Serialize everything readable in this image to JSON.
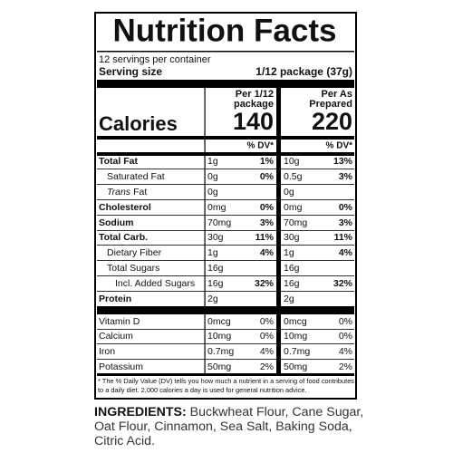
{
  "label": {
    "title": "Nutrition Facts",
    "servings": "12 servings per container",
    "serving_size_label": "Serving size",
    "serving_size_value": "1/12 package (37g)",
    "calories_label": "Calories",
    "columns": [
      {
        "header": [
          "Per 1/12",
          "package"
        ],
        "calories": 140,
        "dv_header": "% DV*"
      },
      {
        "header": [
          "Per As",
          "Prepared"
        ],
        "calories": 220,
        "dv_header": "% DV*"
      }
    ],
    "rows": [
      {
        "name": "Total Fat",
        "amounts": [
          "1g",
          "10g"
        ],
        "dv": [
          "1%",
          "13%"
        ]
      },
      {
        "name": "Saturated Fat",
        "amounts": [
          "0g",
          "0.5g"
        ],
        "dv": [
          "0%",
          "3%"
        ]
      },
      {
        "name_prefix": "Trans",
        "name": "Fat",
        "amounts": [
          "0g",
          "0g"
        ],
        "dv": [
          null,
          null
        ]
      },
      {
        "name": "Cholesterol",
        "amounts": [
          "0mg",
          "0mg"
        ],
        "dv": [
          "0%",
          "0%"
        ]
      },
      {
        "name": "Sodium",
        "amounts": [
          "70mg",
          "70mg"
        ],
        "dv": [
          "3%",
          "3%"
        ]
      },
      {
        "name": "Total Carb.",
        "amounts": [
          "30g",
          "30g"
        ],
        "dv": [
          "11%",
          "11%"
        ]
      },
      {
        "name": "Dietary Fiber",
        "amounts": [
          "1g",
          "1g"
        ],
        "dv": [
          "4%",
          "4%"
        ]
      },
      {
        "name": "Total Sugars",
        "amounts": [
          "16g",
          "16g"
        ],
        "dv": [
          null,
          null
        ]
      },
      {
        "name": "Incl. Added Sugars",
        "amounts": [
          "16g",
          "16g"
        ],
        "dv": [
          "32%",
          "32%"
        ]
      },
      {
        "name": "Protein",
        "amounts": [
          "2g",
          "2g"
        ],
        "dv": [
          null,
          null
        ]
      },
      {
        "name": "Vitamin D",
        "amounts": [
          "0mcg",
          "0mcg"
        ],
        "dv": [
          "0%",
          "0%"
        ]
      },
      {
        "name": "Calcium",
        "amounts": [
          "10mg",
          "10mg"
        ],
        "dv": [
          "0%",
          "0%"
        ]
      },
      {
        "name": "Iron",
        "amounts": [
          "0.7mg",
          "0.7mg"
        ],
        "dv": [
          "4%",
          "4%"
        ]
      },
      {
        "name": "Potassium",
        "amounts": [
          "50mg",
          "50mg"
        ],
        "dv": [
          "2%",
          "2%"
        ]
      }
    ],
    "footnote": "* The % Daily Value (DV) tells you how much a nutrient in a serving of food contributes to a daily diet. 2,000 calories a day is used for general nutrition advice."
  },
  "ingredients": {
    "label": "INGREDIENTS:",
    "text": "Buckwheat Flour, Cane Sugar, Oat Flour, Cinnamon, Sea Salt, Baking Soda, Citric Acid."
  }
}
